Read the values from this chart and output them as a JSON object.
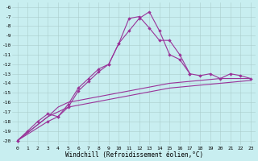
{
  "xlabel": "Windchill (Refroidissement éolien,°C)",
  "background_color": "#c8eef0",
  "grid_color": "#aacccc",
  "line_color": "#993399",
  "x": [
    0,
    1,
    2,
    3,
    4,
    5,
    6,
    7,
    8,
    9,
    10,
    11,
    12,
    13,
    14,
    15,
    16,
    17,
    18,
    19,
    20,
    21,
    22,
    23
  ],
  "line1": [
    -20.0,
    -19.0,
    -18.0,
    -17.2,
    -17.5,
    -16.2,
    -14.5,
    -13.5,
    -12.5,
    -12.0,
    -9.8,
    -7.2,
    -7.0,
    -8.2,
    -9.5,
    -9.5,
    -11.0,
    -13.0,
    null,
    null,
    null,
    null,
    null,
    null
  ],
  "line2": [
    -20.0,
    null,
    null,
    -18.0,
    -17.5,
    -16.5,
    -14.8,
    -13.8,
    -12.8,
    -12.0,
    -9.8,
    -8.5,
    -7.2,
    -6.5,
    -8.5,
    -11.0,
    -11.5,
    -13.0,
    -13.2,
    -13.0,
    -13.5,
    -13.0,
    -13.2,
    -13.5
  ],
  "line3": [
    -20.0,
    null,
    null,
    -17.5,
    -16.5,
    -16.0,
    -15.8,
    -15.6,
    -15.4,
    -15.2,
    -15.0,
    -14.8,
    -14.6,
    -14.4,
    -14.2,
    -14.0,
    -13.9,
    -13.8,
    -13.7,
    -13.6,
    -13.5,
    -13.5,
    -13.5,
    -13.5
  ],
  "line4": [
    -20.0,
    null,
    null,
    -17.5,
    -17.0,
    -16.5,
    -16.3,
    -16.1,
    -15.9,
    -15.7,
    -15.5,
    -15.3,
    -15.1,
    -14.9,
    -14.7,
    -14.5,
    -14.4,
    -14.3,
    -14.2,
    -14.1,
    -14.0,
    -13.9,
    -13.8,
    -13.7
  ],
  "ylim": [
    -20.5,
    -5.5
  ],
  "xlim": [
    -0.5,
    23.5
  ],
  "yticks": [
    -20,
    -19,
    -18,
    -17,
    -16,
    -15,
    -14,
    -13,
    -12,
    -11,
    -10,
    -9,
    -8,
    -7,
    -6
  ],
  "xticks": [
    0,
    1,
    2,
    3,
    4,
    5,
    6,
    7,
    8,
    9,
    10,
    11,
    12,
    13,
    14,
    15,
    16,
    17,
    18,
    19,
    20,
    21,
    22,
    23
  ]
}
